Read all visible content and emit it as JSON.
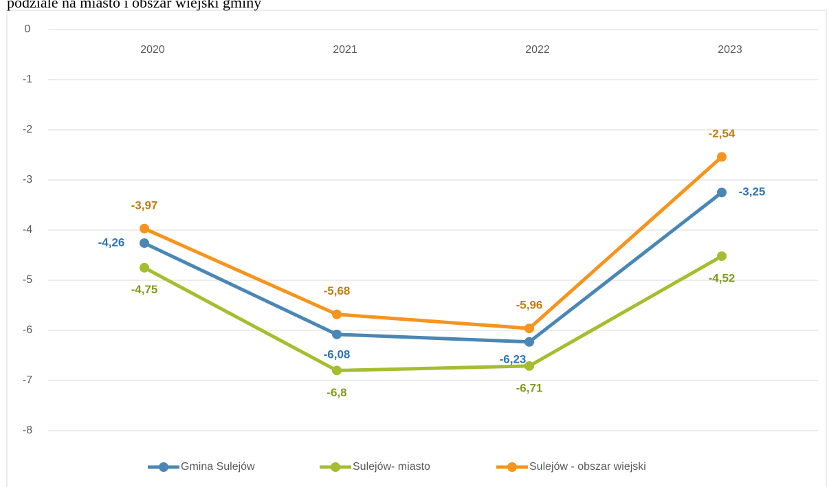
{
  "chart_data": {
    "type": "line",
    "title": "podziale na miasto i obszar wiejski gminy",
    "categories": [
      "2020",
      "2021",
      "2022",
      "2023"
    ],
    "ylim": [
      -8,
      0
    ],
    "yticks": [
      0,
      -1,
      -2,
      -3,
      -4,
      -5,
      -6,
      -7,
      -8
    ],
    "grid": true,
    "legend": "bottom",
    "series": [
      {
        "name": "Gmina Sulejów",
        "color": "#4a87b5",
        "label_color": "#2e75b6",
        "values": [
          -4.26,
          -6.08,
          -6.23,
          -3.25
        ],
        "value_labels": [
          "-4,26",
          "-6,08",
          "-6,23",
          "-3,25"
        ]
      },
      {
        "name": "Sulejów- miasto",
        "color": "#a5be2f",
        "label_color": "#809b1f",
        "values": [
          -4.75,
          -6.8,
          -6.71,
          -4.52
        ],
        "value_labels": [
          "-4,75",
          "-6,8",
          "-6,71",
          "-4,52"
        ]
      },
      {
        "name": "Sulejów  - obszar wiejski",
        "color": "#f7941d",
        "label_color": "#c27c12",
        "values": [
          -3.97,
          -5.68,
          -5.96,
          -2.54
        ],
        "value_labels": [
          "-3,97",
          "-5,68",
          "-5,96",
          "-2,54"
        ]
      }
    ]
  }
}
